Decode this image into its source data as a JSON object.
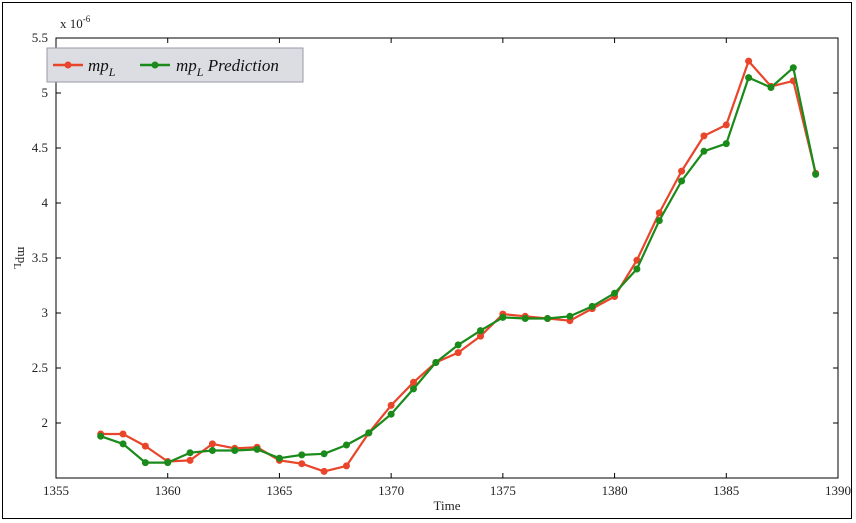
{
  "chart_data": {
    "type": "line",
    "title": "",
    "xlabel": "Time",
    "ylabel": "mp",
    "ylabel_subscript": "L",
    "exponent_label": "x 10",
    "exponent_power": "-6",
    "xlim": [
      1355,
      1390
    ],
    "ylim": [
      1.5,
      5.5
    ],
    "xticks": [
      1355,
      1360,
      1365,
      1370,
      1375,
      1380,
      1385,
      1390
    ],
    "xtick_labels": [
      "1355",
      "1360",
      "1365",
      "1370",
      "1375",
      "1380",
      "1385",
      "1390"
    ],
    "yticks": [
      2,
      2.5,
      3,
      3.5,
      4,
      4.5,
      5,
      5.5
    ],
    "ytick_labels": [
      "2",
      "2.5",
      "3",
      "3.5",
      "4",
      "4.5",
      "5",
      "5.5"
    ],
    "grid": false,
    "legend_position": "top-left",
    "x": [
      1357,
      1358,
      1359,
      1360,
      1361,
      1362,
      1363,
      1364,
      1365,
      1366,
      1367,
      1368,
      1369,
      1370,
      1371,
      1372,
      1373,
      1374,
      1375,
      1376,
      1377,
      1378,
      1379,
      1380,
      1381,
      1382,
      1383,
      1384,
      1385,
      1386,
      1387,
      1388,
      1389
    ],
    "series": [
      {
        "name": "mp",
        "name_subscript": "L",
        "color": "#e8452a",
        "values": [
          1.9,
          1.9,
          1.79,
          1.65,
          1.66,
          1.81,
          1.77,
          1.78,
          1.66,
          1.63,
          1.56,
          1.61,
          1.91,
          2.16,
          2.37,
          2.55,
          2.64,
          2.79,
          2.99,
          2.97,
          2.95,
          2.93,
          3.04,
          3.15,
          3.48,
          3.91,
          4.29,
          4.61,
          4.71,
          5.29,
          5.06,
          5.11,
          4.27
        ]
      },
      {
        "name": "mp",
        "name_subscript": "L",
        "name_suffix": " Prediction",
        "color": "#1a8a1a",
        "values": [
          1.88,
          1.81,
          1.64,
          1.64,
          1.73,
          1.75,
          1.75,
          1.76,
          1.68,
          1.71,
          1.72,
          1.8,
          1.91,
          2.08,
          2.31,
          2.55,
          2.71,
          2.84,
          2.96,
          2.95,
          2.95,
          2.97,
          3.06,
          3.18,
          3.4,
          3.84,
          4.2,
          4.47,
          4.54,
          5.14,
          5.05,
          5.23,
          4.26
        ]
      }
    ]
  }
}
